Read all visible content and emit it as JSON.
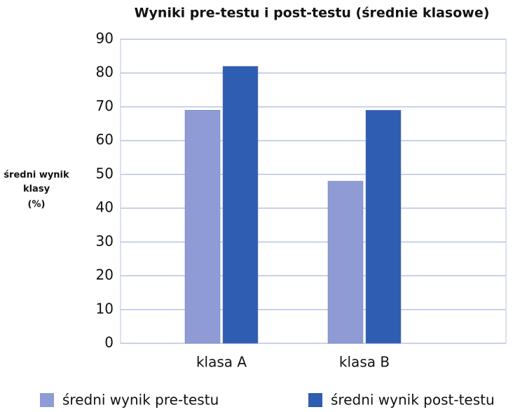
{
  "chart_data": {
    "type": "bar",
    "title": "Wyniki pre-testu i post-testu (średnie klasowe)",
    "ylabel": [
      "średni wynik",
      "klasy",
      "(%)"
    ],
    "categories": [
      "klasa A",
      "klasa B"
    ],
    "series": [
      {
        "name": "średni wynik pre-testu",
        "color": "#8e9bd4",
        "values": [
          69,
          48
        ]
      },
      {
        "name": "średni wynik post-testu",
        "color": "#2f5db1",
        "values": [
          82,
          69
        ]
      }
    ],
    "ylim": [
      0,
      90
    ],
    "yticks": [
      0,
      10,
      20,
      30,
      40,
      50,
      60,
      70,
      80,
      90
    ],
    "grid": true
  }
}
